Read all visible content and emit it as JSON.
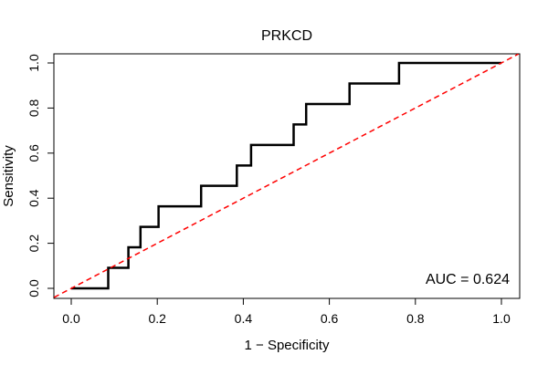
{
  "chart_data": {
    "type": "line",
    "title": "PRKCD",
    "xlabel": "1 − Specificity",
    "ylabel": "Sensitivity",
    "xlim": [
      0,
      1
    ],
    "ylim": [
      0,
      1
    ],
    "x_ticks": [
      0.0,
      0.2,
      0.4,
      0.6,
      0.8,
      1.0
    ],
    "x_tick_labels": [
      "0.0",
      "0.2",
      "0.4",
      "0.6",
      "0.8",
      "1.0"
    ],
    "y_ticks": [
      0.0,
      0.2,
      0.4,
      0.6,
      0.8,
      1.0
    ],
    "y_tick_labels": [
      "0.0",
      "0.2",
      "0.4",
      "0.6",
      "0.8",
      "1.0"
    ],
    "annotation": "AUC = 0.624",
    "grid": false,
    "series": [
      {
        "name": "ROC curve",
        "color": "#000000",
        "x": [
          0.0,
          0.086,
          0.086,
          0.133,
          0.133,
          0.161,
          0.161,
          0.203,
          0.203,
          0.302,
          0.302,
          0.385,
          0.385,
          0.418,
          0.418,
          0.517,
          0.517,
          0.546,
          0.546,
          0.647,
          0.647,
          0.762,
          0.762,
          1.0
        ],
        "y": [
          0.0,
          0.0,
          0.091,
          0.091,
          0.182,
          0.182,
          0.273,
          0.273,
          0.364,
          0.364,
          0.455,
          0.455,
          0.545,
          0.545,
          0.636,
          0.636,
          0.727,
          0.727,
          0.818,
          0.818,
          0.909,
          0.909,
          1.0,
          1.0
        ]
      },
      {
        "name": "Reference diagonal",
        "color": "#ff0000",
        "dashed": true,
        "x": [
          -0.04,
          1.04
        ],
        "y": [
          -0.04,
          1.04
        ]
      }
    ]
  }
}
